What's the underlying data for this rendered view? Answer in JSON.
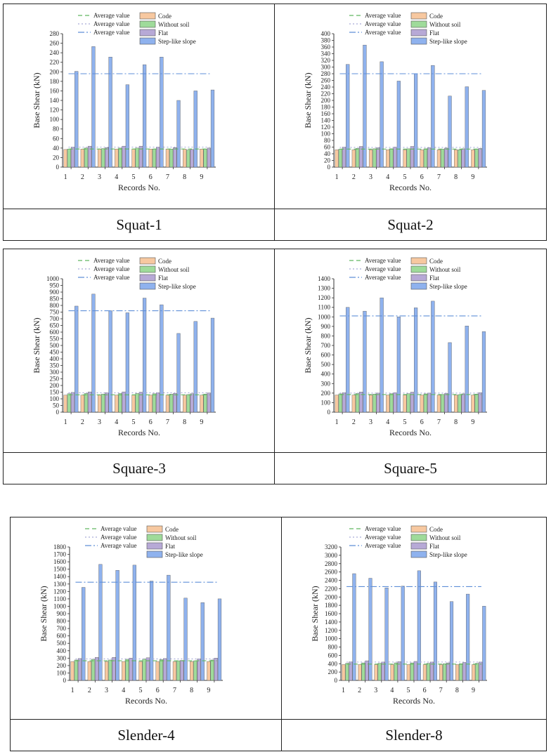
{
  "legend": {
    "avg_labels": [
      "Average value",
      "Average value",
      "Average value"
    ],
    "bar_labels": [
      "Code",
      "Without soil",
      "Flat",
      "Step-like slope"
    ]
  },
  "colors": {
    "code": "#f7c8a0",
    "without_soil": "#9fdb9a",
    "flat": "#b7a9d6",
    "slope": "#8fb2ee",
    "avg_code": "#62b862",
    "avg_flat": "#a6aad8",
    "avg_slope": "#5f8fd8"
  },
  "chart_data": [
    {
      "type": "bar",
      "caption": "Squat-1",
      "xlabel": "Records No.",
      "ylabel": "Base Shear (kN)",
      "categories": [
        "1",
        "2",
        "3",
        "4",
        "5",
        "6",
        "7",
        "8",
        "9"
      ],
      "ylim": [
        0,
        280
      ],
      "yticks": [
        0,
        20,
        40,
        60,
        80,
        100,
        120,
        140,
        160,
        180,
        200,
        220,
        240,
        260,
        280
      ],
      "series": [
        {
          "name": "Code",
          "values": [
            37,
            38,
            38,
            38,
            38,
            38,
            38,
            38,
            38
          ]
        },
        {
          "name": "Without soil",
          "values": [
            38,
            40,
            39,
            40,
            40,
            38,
            38,
            36,
            38
          ]
        },
        {
          "name": "Flat",
          "values": [
            42,
            44,
            41,
            44,
            44,
            42,
            41,
            37,
            40
          ]
        },
        {
          "name": "Step-like slope",
          "values": [
            201,
            253,
            231,
            173,
            215,
            231,
            140,
            160,
            162
          ]
        }
      ],
      "averages": {
        "code": 38,
        "flat": 42,
        "slope": 196
      }
    },
    {
      "type": "bar",
      "caption": "Squat-2",
      "xlabel": "Records No.",
      "ylabel": "Base Shear (kN)",
      "categories": [
        "1",
        "2",
        "3",
        "4",
        "5",
        "6",
        "7",
        "8",
        "9"
      ],
      "ylim": [
        0,
        400
      ],
      "yticks": [
        0,
        20,
        40,
        60,
        80,
        100,
        120,
        140,
        160,
        180,
        200,
        220,
        240,
        260,
        280,
        300,
        320,
        340,
        360,
        380,
        400
      ],
      "series": [
        {
          "name": "Code",
          "values": [
            52,
            52,
            52,
            52,
            52,
            52,
            52,
            52,
            52
          ]
        },
        {
          "name": "Without soil",
          "values": [
            54,
            56,
            55,
            55,
            55,
            55,
            54,
            52,
            54
          ]
        },
        {
          "name": "Flat",
          "values": [
            60,
            62,
            58,
            60,
            62,
            58,
            57,
            55,
            56
          ]
        },
        {
          "name": "Step-like slope",
          "values": [
            308,
            366,
            316,
            258,
            280,
            305,
            213,
            241,
            230
          ]
        }
      ],
      "averages": {
        "code": 54,
        "flat": 59,
        "slope": 280
      }
    },
    {
      "type": "bar",
      "caption": "Square-3",
      "xlabel": "Records No.",
      "ylabel": "Base Shear (kN)",
      "categories": [
        "1",
        "2",
        "3",
        "4",
        "5",
        "6",
        "7",
        "8",
        "9"
      ],
      "ylim": [
        0,
        1000
      ],
      "yticks": [
        0,
        50,
        100,
        150,
        200,
        250,
        300,
        350,
        400,
        450,
        500,
        550,
        600,
        650,
        700,
        750,
        800,
        850,
        900,
        950,
        1000
      ],
      "series": [
        {
          "name": "Code",
          "values": [
            128,
            128,
            128,
            128,
            128,
            128,
            128,
            128,
            128
          ]
        },
        {
          "name": "Without soil",
          "values": [
            138,
            140,
            136,
            140,
            140,
            138,
            135,
            132,
            136
          ]
        },
        {
          "name": "Flat",
          "values": [
            148,
            152,
            146,
            152,
            150,
            146,
            140,
            138,
            144
          ]
        },
        {
          "name": "Step-like slope",
          "values": [
            795,
            885,
            760,
            745,
            855,
            805,
            590,
            680,
            705
          ]
        }
      ],
      "averages": {
        "code": 130,
        "flat": 145,
        "slope": 760
      }
    },
    {
      "type": "bar",
      "caption": "Square-5",
      "xlabel": "Records No.",
      "ylabel": "Base Shear (kN)",
      "categories": [
        "1",
        "2",
        "3",
        "4",
        "5",
        "6",
        "7",
        "8",
        "9"
      ],
      "ylim": [
        0,
        1400
      ],
      "yticks": [
        0,
        100,
        200,
        300,
        400,
        500,
        600,
        700,
        800,
        900,
        1000,
        1100,
        1200,
        1300,
        1400
      ],
      "series": [
        {
          "name": "Code",
          "values": [
            180,
            180,
            180,
            180,
            180,
            180,
            180,
            180,
            180
          ]
        },
        {
          "name": "Without soil",
          "values": [
            192,
            196,
            190,
            194,
            194,
            192,
            186,
            184,
            190
          ]
        },
        {
          "name": "Flat",
          "values": [
            205,
            212,
            200,
            205,
            210,
            200,
            196,
            192,
            205
          ]
        },
        {
          "name": "Step-like slope",
          "values": [
            1100,
            1060,
            1200,
            1000,
            1095,
            1165,
            730,
            905,
            845
          ]
        }
      ],
      "averages": {
        "code": 185,
        "flat": 200,
        "slope": 1010
      }
    },
    {
      "type": "bar",
      "caption": "Slender-4",
      "xlabel": "Records No.",
      "ylabel": "Base Shear (kN)",
      "categories": [
        "1",
        "2",
        "3",
        "4",
        "5",
        "6",
        "7",
        "8",
        "9"
      ],
      "ylim": [
        0,
        1800
      ],
      "yticks": [
        0,
        100,
        200,
        300,
        400,
        500,
        600,
        700,
        800,
        900,
        1000,
        1100,
        1200,
        1300,
        1400,
        1500,
        1600,
        1700,
        1800
      ],
      "series": [
        {
          "name": "Code",
          "values": [
            255,
            255,
            255,
            255,
            255,
            255,
            255,
            255,
            255
          ]
        },
        {
          "name": "Without soil",
          "values": [
            275,
            285,
            275,
            285,
            290,
            280,
            265,
            265,
            275
          ]
        },
        {
          "name": "Flat",
          "values": [
            295,
            310,
            310,
            300,
            305,
            295,
            270,
            290,
            300
          ]
        },
        {
          "name": "Step-like slope",
          "values": [
            1255,
            1565,
            1485,
            1555,
            1340,
            1420,
            1110,
            1050,
            1100
          ]
        }
      ],
      "averages": {
        "code": 265,
        "flat": 290,
        "slope": 1325
      }
    },
    {
      "type": "bar",
      "caption": "Slender-8",
      "xlabel": "Records No.",
      "ylabel": "Base Shear (kN)",
      "categories": [
        "1",
        "2",
        "3",
        "4",
        "5",
        "6",
        "7",
        "8",
        "9"
      ],
      "ylim": [
        0,
        3200
      ],
      "yticks": [
        0,
        200,
        400,
        600,
        800,
        1000,
        1200,
        1400,
        1600,
        1800,
        2000,
        2200,
        2400,
        2600,
        2800,
        3000,
        3200
      ],
      "series": [
        {
          "name": "Code",
          "values": [
            380,
            380,
            380,
            380,
            380,
            380,
            380,
            380,
            380
          ]
        },
        {
          "name": "Without soil",
          "values": [
            410,
            420,
            410,
            420,
            420,
            410,
            400,
            400,
            410
          ]
        },
        {
          "name": "Flat",
          "values": [
            445,
            470,
            440,
            450,
            455,
            440,
            420,
            430,
            440
          ]
        },
        {
          "name": "Step-like slope",
          "values": [
            2560,
            2450,
            2220,
            2260,
            2630,
            2360,
            1890,
            2070,
            1780
          ]
        }
      ],
      "averages": {
        "code": 390,
        "flat": 440,
        "slope": 2250
      }
    }
  ]
}
